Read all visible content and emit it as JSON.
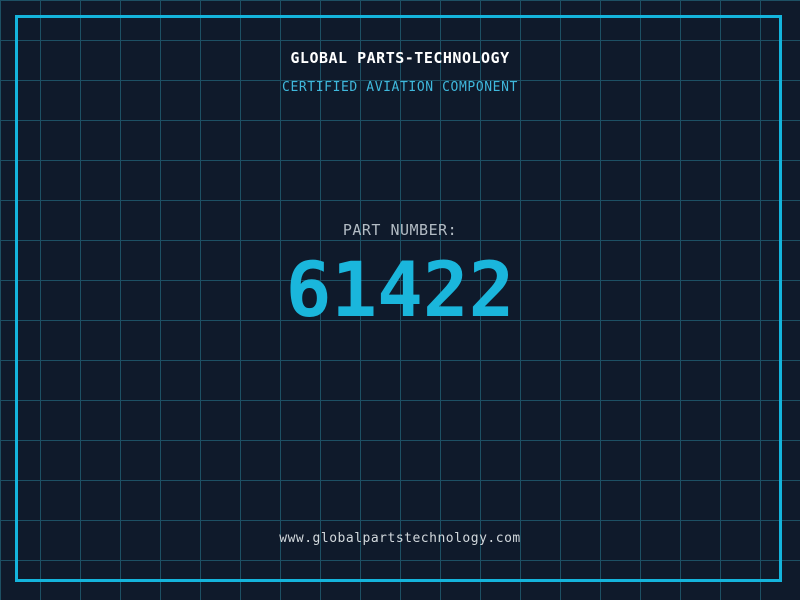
{
  "page": {
    "title": "GLOBAL PARTS-TECHNOLOGY",
    "subtitle": "CERTIFIED AVIATION COMPONENT",
    "part_number_label": "PART NUMBER:",
    "part_number": "61422",
    "website": "www.globalpartstechnology.com"
  },
  "colors": {
    "background": "#0f1a2b",
    "grid-line": "#1d5064",
    "frame": "#14b4dc",
    "title": "#ffffff",
    "subtitle": "#3fb8dc",
    "label": "#b3bcc4",
    "part-number": "#1ab6dc",
    "footer": "#d2d8dc"
  }
}
